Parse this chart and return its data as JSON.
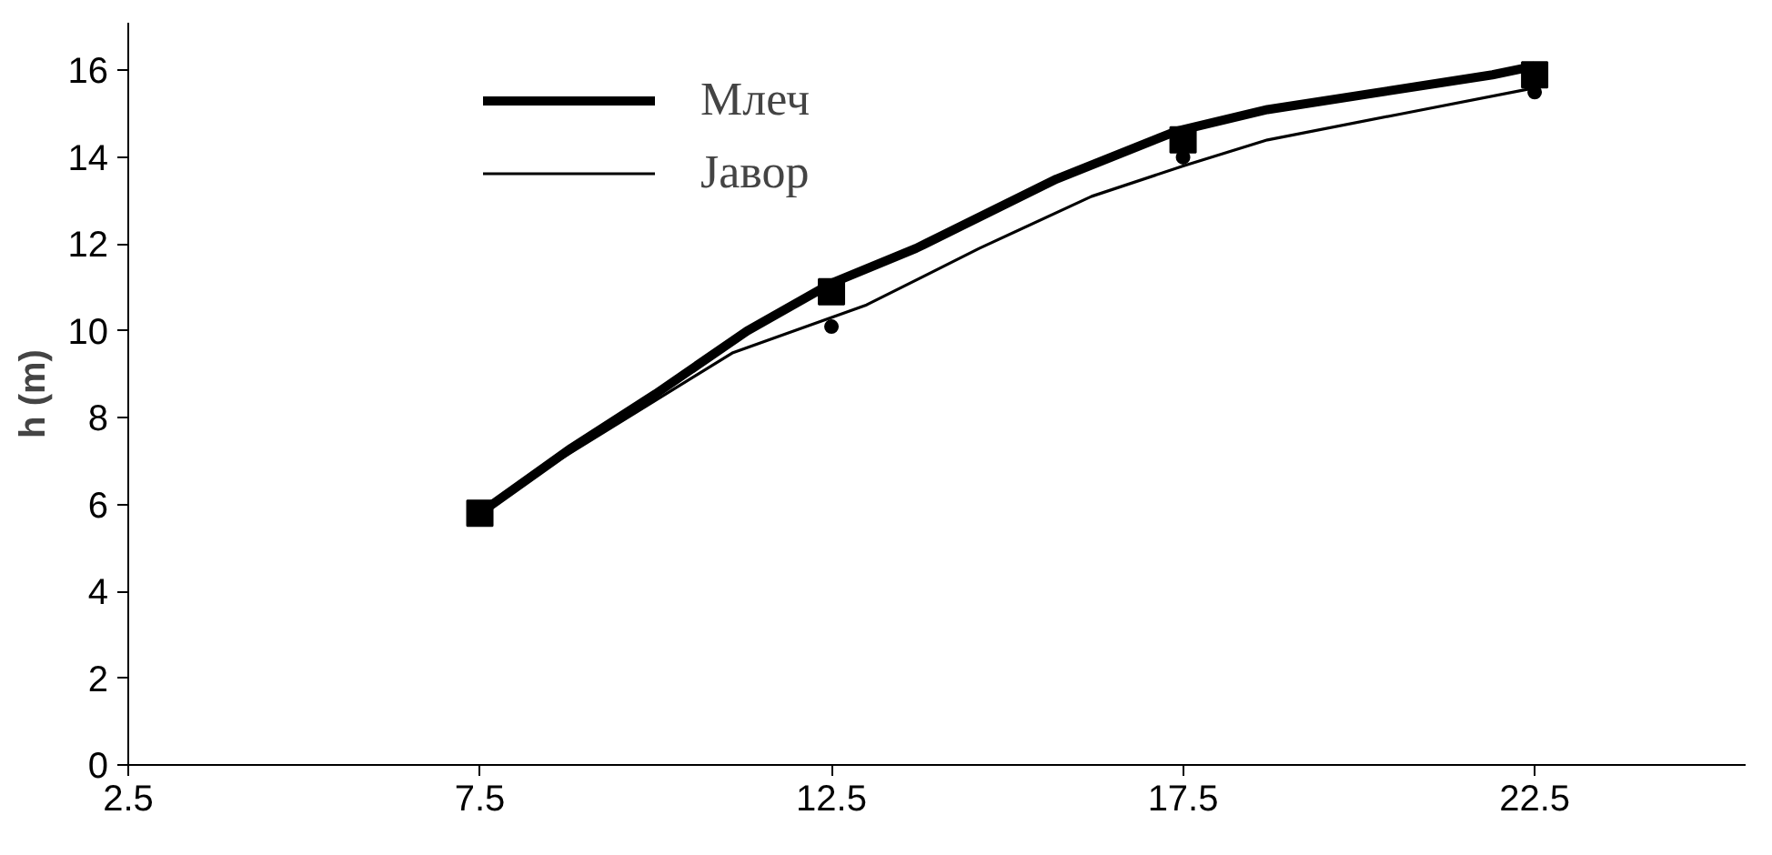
{
  "chart_data": {
    "type": "line",
    "ylabel": "h (m)",
    "xlim": [
      2.5,
      25.5
    ],
    "ylim": [
      0,
      17.1
    ],
    "xticks": [
      2.5,
      7.5,
      12.5,
      17.5,
      22.5
    ],
    "yticks": [
      0,
      2,
      4,
      6,
      8,
      10,
      12,
      14,
      16
    ],
    "grid": false,
    "legend": "top left",
    "series": [
      {
        "name": "Млеч",
        "color": "#000000",
        "x": [
          7.5,
          8.8,
          10.0,
          11.3,
          12.5,
          13.7,
          15.7,
          17.4,
          18.7,
          20.3,
          21.9,
          22.5
        ],
        "values": [
          5.8,
          7.3,
          8.55,
          10.0,
          11.1,
          11.9,
          13.5,
          14.6,
          15.1,
          15.5,
          15.9,
          16.1
        ]
      },
      {
        "name": "Јавор",
        "color": "#000000",
        "x": [
          7.5,
          8.6,
          9.8,
          11.1,
          13.0,
          14.6,
          16.2,
          17.5,
          18.7,
          20.6,
          22.5
        ],
        "values": [
          5.8,
          7.0,
          8.2,
          9.5,
          10.6,
          11.9,
          13.1,
          13.8,
          14.4,
          15.0,
          15.6
        ]
      },
      {
        "color": "#000000",
        "type": "scatter",
        "marker": "square",
        "x": [
          7.5,
          12.5,
          17.5,
          22.5
        ],
        "values": [
          5.8,
          10.9,
          14.4,
          15.9
        ]
      },
      {
        "color": "#000000",
        "type": "scatter",
        "marker": "circle",
        "x": [
          12.5,
          17.5,
          22.5
        ],
        "values": [
          10.1,
          14.0,
          15.5
        ]
      }
    ]
  }
}
